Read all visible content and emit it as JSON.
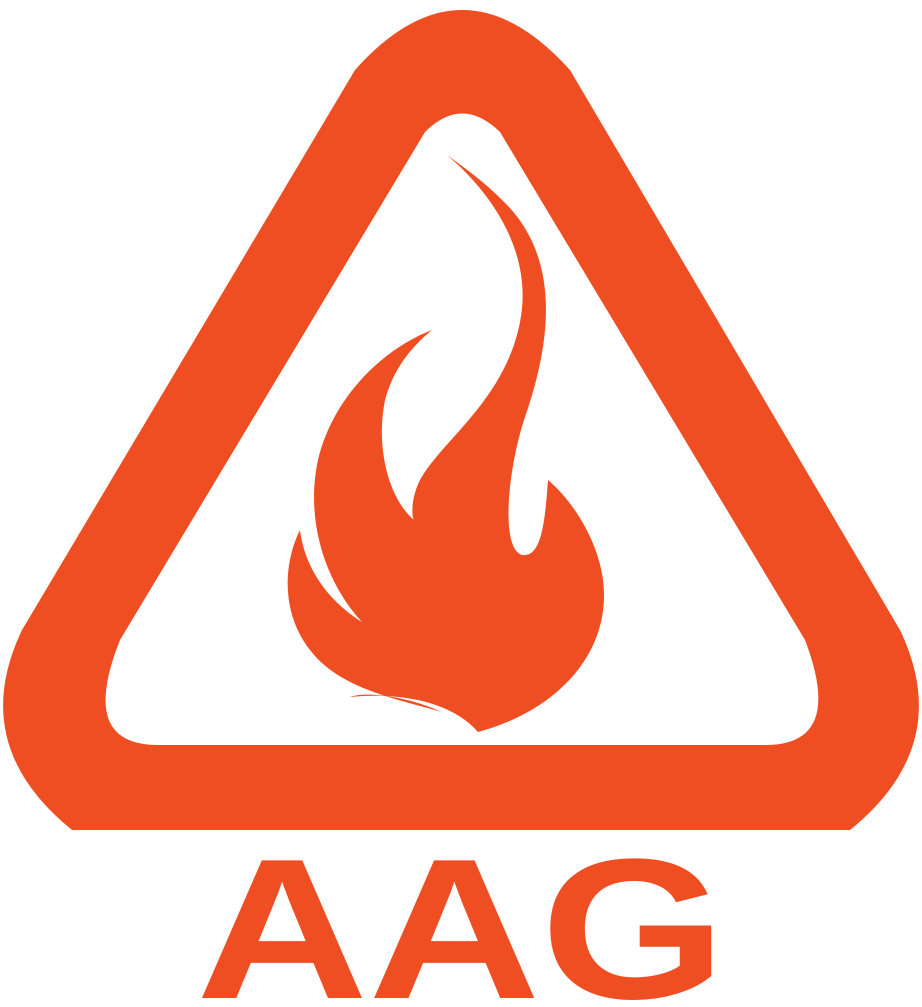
{
  "logo": {
    "text": "AAG"
  }
}
